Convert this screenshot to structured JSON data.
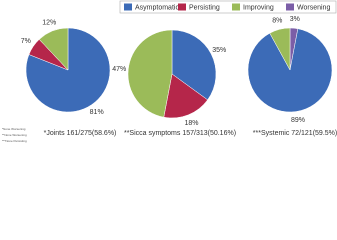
{
  "legend": {
    "labels": [
      "Asymptomatic",
      "Persisting",
      "Improving",
      "Worsening"
    ],
    "colors": [
      "#3c6bb7",
      "#b5264a",
      "#9bbb59",
      "#7b5ea7"
    ]
  },
  "chart_data": [
    {
      "type": "pie",
      "title": "*Joints 161/275(58.6%)",
      "categories": [
        "Asymptomatic",
        "Persisting",
        "Improving"
      ],
      "values": [
        81,
        7,
        12
      ],
      "value_labels": [
        "81%",
        "7%",
        "12%"
      ],
      "colors": [
        "#3c6bb7",
        "#b5264a",
        "#9bbb59"
      ]
    },
    {
      "type": "pie",
      "title": "**Sicca symptoms 157/313(50.16%)",
      "categories": [
        "Asymptomatic",
        "Persisting",
        "Improving"
      ],
      "values": [
        35,
        18,
        47
      ],
      "value_labels": [
        "35%",
        "18%",
        "47%"
      ],
      "colors": [
        "#3c6bb7",
        "#b5264a",
        "#9bbb59"
      ]
    },
    {
      "type": "pie",
      "title": "***Systemic 72/121(59.5%)",
      "categories": [
        "Worsening",
        "Asymptomatic",
        "Improving"
      ],
      "values": [
        3,
        89,
        8
      ],
      "value_labels": [
        "3%",
        "89%",
        "8%"
      ],
      "colors": [
        "#7b5ea7",
        "#3c6bb7",
        "#9bbb59"
      ]
    }
  ],
  "footnotes": [
    "*None Worsening",
    "**None Worsening",
    "***None Persisting"
  ]
}
